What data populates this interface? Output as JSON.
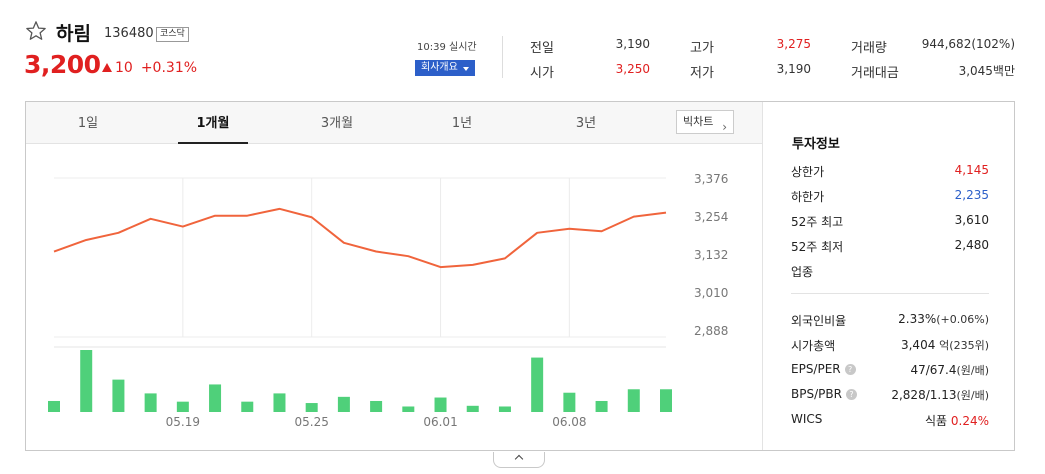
{
  "stock": {
    "name": "하림",
    "code": "136480",
    "market": "코스닥",
    "price": "3,200",
    "change": "10",
    "change_rate": "+0.31%",
    "realtime_label": "10:39 실시간",
    "company_button": "회사개요"
  },
  "quote": {
    "prev_close": {
      "label": "전일",
      "value": "3,190"
    },
    "open": {
      "label": "시가",
      "value": "3,250"
    },
    "high": {
      "label": "고가",
      "value": "3,275"
    },
    "low": {
      "label": "저가",
      "value": "3,190"
    },
    "volume": {
      "label": "거래량",
      "value": "944,682(102%)"
    },
    "trade_value": {
      "label": "거래대금",
      "value": "3,045백만"
    }
  },
  "tabs": [
    "1일",
    "1개월",
    "3개월",
    "1년",
    "3년"
  ],
  "active_tab": "1개월",
  "big_chart_button": "빅차트",
  "chart_data": {
    "type": "line",
    "y_ticks": [
      "3,376",
      "3,254",
      "3,132",
      "3,010",
      "2,888"
    ],
    "ylim": [
      2888,
      3376
    ],
    "x_tick_labels": [
      "05.19",
      "05.25",
      "06.01",
      "06.08"
    ],
    "price": [
      3140,
      3177,
      3200,
      3245,
      3220,
      3255,
      3255,
      3277,
      3250,
      3168,
      3140,
      3125,
      3090,
      3097,
      3118,
      3200,
      3213,
      3205,
      3252,
      3265
    ],
    "volume": [
      16,
      90,
      47,
      27,
      15,
      40,
      15,
      27,
      13,
      22,
      16,
      8,
      21,
      9,
      8,
      79,
      28,
      16,
      33,
      33
    ]
  },
  "invest_info": {
    "title": "투자정보",
    "upper_limit": {
      "label": "상한가",
      "value": "4,145"
    },
    "lower_limit": {
      "label": "하한가",
      "value": "2,235"
    },
    "high_52w": {
      "label": "52주 최고",
      "value": "3,610"
    },
    "low_52w": {
      "label": "52주 최저",
      "value": "2,480"
    },
    "industry": {
      "label": "업종"
    },
    "foreign_ratio": {
      "label": "외국인비율",
      "value": "2.33%",
      "sub": "(+0.06%)"
    },
    "market_cap": {
      "label": "시가총액",
      "value": "3,404",
      "unit": "억",
      "sub": "(235위)"
    },
    "eps_per": {
      "label": "EPS/PER",
      "value": "47/67.4",
      "unit": "(원/배)"
    },
    "bps_pbr": {
      "label": "BPS/PBR",
      "value": "2,828/1.13",
      "unit": "(원/배)"
    },
    "wics": {
      "label": "WICS",
      "value": "식품",
      "change": "0.24%"
    }
  },
  "help_icon": "?",
  "colors": {
    "up": "#e02020",
    "down": "#2c5fc9",
    "line": "#f0643c",
    "volume": "#4fd07a",
    "button": "#2c5fc9"
  }
}
